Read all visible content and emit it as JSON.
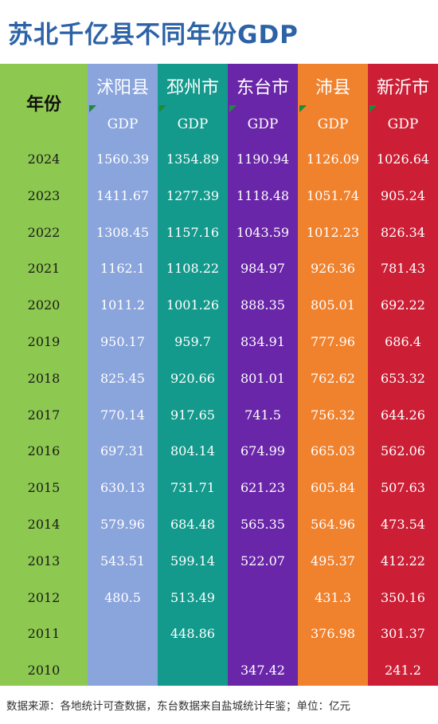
{
  "title": "苏北千亿县不同年份GDP",
  "footer": "数据来源：各地统计可查数据，东台数据来自盐城统计年鉴；单位：亿元",
  "year_header": "年份",
  "colors": {
    "year": "#8dc851",
    "沭阳县": "#8aa4dc",
    "邳州市": "#149a8c",
    "东台市": "#6a26a8",
    "沛县": "#f0822e",
    "新沂市": "#cc1f36",
    "title": "#2d63a6",
    "header_triangle": "#1f8a3a"
  },
  "chart_data": {
    "type": "table",
    "title": "苏北千亿县不同年份GDP",
    "years": [
      "2024",
      "2023",
      "2022",
      "2021",
      "2020",
      "2019",
      "2018",
      "2017",
      "2016",
      "2015",
      "2014",
      "2013",
      "2012",
      "2011",
      "2010"
    ],
    "series": [
      {
        "name": "沭阳县",
        "unit_label": "GDP",
        "values": [
          "1560.39",
          "1411.67",
          "1308.45",
          "1162.1",
          "1011.2",
          "950.17",
          "825.45",
          "770.14",
          "697.31",
          "630.13",
          "579.96",
          "543.51",
          "480.5",
          "",
          ""
        ]
      },
      {
        "name": "邳州市",
        "unit_label": "GDP",
        "values": [
          "1354.89",
          "1277.39",
          "1157.16",
          "1108.22",
          "1001.26",
          "959.7",
          "920.66",
          "917.65",
          "804.14",
          "731.71",
          "684.48",
          "599.14",
          "513.49",
          "448.86",
          ""
        ]
      },
      {
        "name": "东台市",
        "unit_label": "GDP",
        "values": [
          "1190.94",
          "1118.48",
          "1043.59",
          "984.97",
          "888.35",
          "834.91",
          "801.01",
          "741.5",
          "674.99",
          "621.23",
          "565.35",
          "522.07",
          "",
          "",
          "347.42"
        ]
      },
      {
        "name": "沛县",
        "unit_label": "GDP",
        "values": [
          "1126.09",
          "1051.74",
          "1012.23",
          "926.36",
          "805.01",
          "777.96",
          "762.62",
          "756.32",
          "665.03",
          "605.84",
          "564.96",
          "495.37",
          "431.3",
          "376.98",
          ""
        ]
      },
      {
        "name": "新沂市",
        "unit_label": "GDP",
        "values": [
          "1026.64",
          "905.24",
          "826.34",
          "781.43",
          "692.22",
          "686.4",
          "653.32",
          "644.26",
          "562.06",
          "507.63",
          "473.54",
          "412.22",
          "350.16",
          "301.37",
          "241.2"
        ]
      }
    ]
  }
}
